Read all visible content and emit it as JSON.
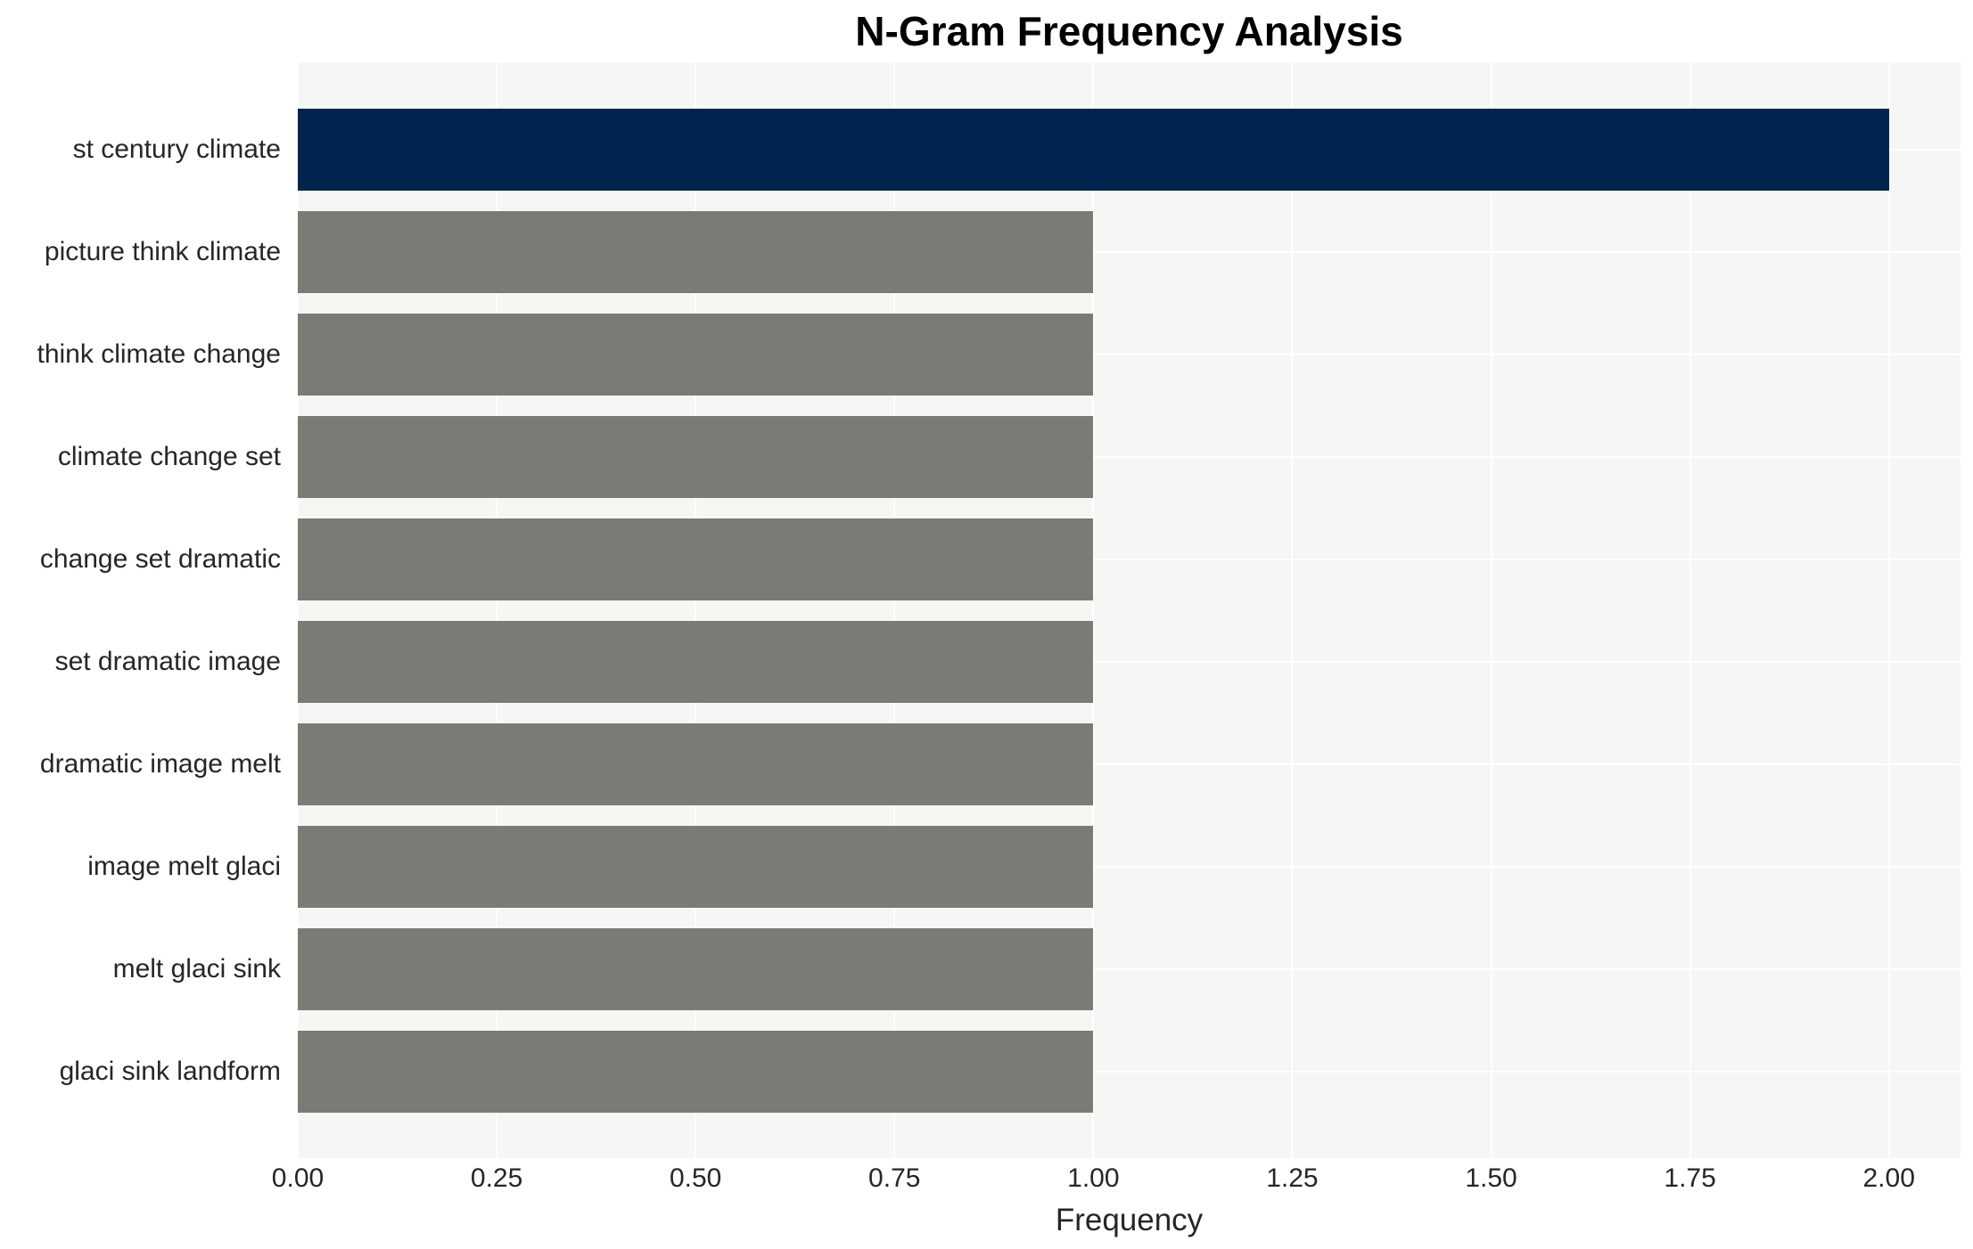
{
  "chart_data": {
    "type": "bar",
    "orientation": "horizontal",
    "title": "N-Gram Frequency Analysis",
    "xlabel": "Frequency",
    "ylabel": "",
    "categories": [
      "st century climate",
      "picture think climate",
      "think climate change",
      "climate change set",
      "change set dramatic",
      "set dramatic image",
      "dramatic image melt",
      "image melt glaci",
      "melt glaci sink",
      "glaci sink landform"
    ],
    "values": [
      2,
      1,
      1,
      1,
      1,
      1,
      1,
      1,
      1,
      1
    ],
    "bar_colors": [
      "#01244e",
      "#7b7b76",
      "#7b7b76",
      "#7b7b76",
      "#7b7b76",
      "#7b7b76",
      "#7b7b76",
      "#7b7b76",
      "#7b7b76",
      "#7b7b76"
    ],
    "xlim": [
      0,
      2.09
    ],
    "xticks": [
      {
        "value": 0.0,
        "label": "0.00"
      },
      {
        "value": 0.25,
        "label": "0.25"
      },
      {
        "value": 0.5,
        "label": "0.50"
      },
      {
        "value": 0.75,
        "label": "0.75"
      },
      {
        "value": 1.0,
        "label": "1.00"
      },
      {
        "value": 1.25,
        "label": "1.25"
      },
      {
        "value": 1.5,
        "label": "1.50"
      },
      {
        "value": 1.75,
        "label": "1.75"
      },
      {
        "value": 2.0,
        "label": "2.00"
      }
    ],
    "grid": true,
    "legend": "none",
    "colors": {
      "highlight_bar": "#01244e",
      "default_bar": "#7b7b76",
      "plot_background": "#f6f6f5",
      "gridline": "#ffffff",
      "text": "#262626",
      "title_text": "#000000"
    }
  }
}
